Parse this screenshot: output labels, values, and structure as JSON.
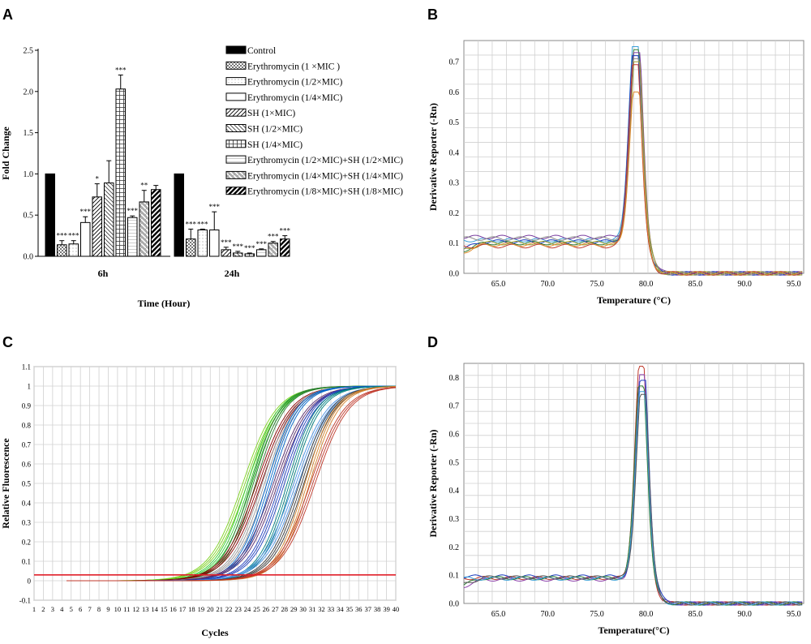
{
  "panels": {
    "a": "A",
    "b": "B",
    "c": "C",
    "d": "D"
  },
  "chart_data": [
    {
      "panel": "A",
      "type": "bar",
      "ylabel": "Fold Change",
      "xlabel": "Time (Hour)",
      "ylim": [
        0,
        2.5
      ],
      "yticks": [
        "0.0",
        "0.5",
        "1.0",
        "1.5",
        "2.0",
        "2.5"
      ],
      "categories": [
        "6h",
        "24h"
      ],
      "series": [
        {
          "name": "Control",
          "values": [
            1.0,
            1.0
          ],
          "err": [
            0,
            0
          ],
          "sig": [
            "",
            ""
          ]
        },
        {
          "name": "Erythromycin (1 ×MIC )",
          "values": [
            0.14,
            0.21
          ],
          "err": [
            0.05,
            0.12
          ],
          "sig": [
            "***",
            "***"
          ]
        },
        {
          "name": "Erythromycin (1/2×MIC)",
          "values": [
            0.15,
            0.32
          ],
          "err": [
            0.04,
            0.01
          ],
          "sig": [
            "***",
            "***"
          ]
        },
        {
          "name": "Erythromycin (1/4×MIC)",
          "values": [
            0.41,
            0.32
          ],
          "err": [
            0.07,
            0.22
          ],
          "sig": [
            "***",
            "***"
          ]
        },
        {
          "name": "SH (1×MIC)",
          "values": [
            0.72,
            0.08
          ],
          "err": [
            0.16,
            0.03
          ],
          "sig": [
            "*",
            "***"
          ]
        },
        {
          "name": "SH (1/2×MIC)",
          "values": [
            0.89,
            0.04
          ],
          "err": [
            0.27,
            0.02
          ],
          "sig": [
            "",
            "***"
          ]
        },
        {
          "name": "SH (1/4×MIC)",
          "values": [
            2.03,
            0.03
          ],
          "err": [
            0.17,
            0.01
          ],
          "sig": [
            "***",
            "***"
          ]
        },
        {
          "name": "Erythromycin (1/2×MIC)+SH (1/2×MIC)",
          "values": [
            0.47,
            0.08
          ],
          "err": [
            0.02,
            0.01
          ],
          "sig": [
            "***",
            "***"
          ]
        },
        {
          "name": "Erythromycin (1/4×MIC)+SH (1/4×MIC)",
          "values": [
            0.66,
            0.16
          ],
          "err": [
            0.14,
            0.02
          ],
          "sig": [
            "**",
            "***"
          ]
        },
        {
          "name": "Erythromycin (1/8×MIC)+SH (1/8×MIC)",
          "values": [
            0.81,
            0.21
          ],
          "err": [
            0.05,
            0.04
          ],
          "sig": [
            "",
            "***"
          ]
        }
      ]
    },
    {
      "panel": "B",
      "type": "line",
      "ylabel": "Derivative Reporter (-Rn)",
      "xlabel": "Temperature (°C)",
      "xlim": [
        61.5,
        96
      ],
      "ylim": [
        0,
        0.77
      ],
      "xticks": [
        "65.0",
        "70.0",
        "75.0",
        "80.0",
        "85.0",
        "90.0",
        "95.0"
      ],
      "yticks": [
        "0.0",
        "0.1",
        "0.2",
        "0.3",
        "0.4",
        "0.5",
        "0.6",
        "0.7"
      ],
      "peak_x": 79.0,
      "peaks": [
        0.75,
        0.74,
        0.73,
        0.72,
        0.71,
        0.7,
        0.69,
        0.6
      ],
      "colors": [
        "#3aa0d8",
        "#2e7d32",
        "#7b3fa0",
        "#1f3fbf",
        "#888888",
        "#9e9e2e",
        "#c0392b",
        "#e08a2c"
      ]
    },
    {
      "panel": "C",
      "type": "line",
      "ylabel": "Relative Fluorescence",
      "xlabel": "Cycles",
      "xlim": [
        1,
        40
      ],
      "ylim": [
        -0.1,
        1.1
      ],
      "xticks": [
        "1",
        "2",
        "3",
        "4",
        "5",
        "6",
        "7",
        "8",
        "9",
        "10",
        "11",
        "12",
        "13",
        "14",
        "15",
        "16",
        "17",
        "18",
        "19",
        "20",
        "21",
        "22",
        "23",
        "24",
        "25",
        "26",
        "27",
        "28",
        "29",
        "30",
        "31",
        "32",
        "33",
        "34",
        "35",
        "36",
        "37",
        "38",
        "39",
        "40"
      ],
      "yticks": [
        "-0.1",
        "0",
        "0.1",
        "0.2",
        "0.3",
        "0.4",
        "0.5",
        "0.6",
        "0.7",
        "0.8",
        "0.9",
        "1",
        "1.1"
      ],
      "threshold": 0.03,
      "midpoints": [
        23.5,
        24.0,
        24.4,
        25.0,
        25.6,
        26.1,
        26.8,
        27.5,
        28.3,
        29.0,
        29.6,
        30.2,
        30.8
      ],
      "colors": [
        "#7ed321",
        "#33cc33",
        "#2e7d32",
        "#8b0000",
        "#999999",
        "#0066cc",
        "#5b2c6f",
        "#1f3fbf",
        "#008080",
        "#4a90e2",
        "#3b3b3b",
        "#d4832c",
        "#c0392b"
      ]
    },
    {
      "panel": "D",
      "type": "line",
      "ylabel": "Derivative Reporter (-Rn)",
      "xlabel": "Temperature(°C)",
      "xlim": [
        61.5,
        96
      ],
      "ylim": [
        0,
        0.85
      ],
      "xticks": [
        "65.0",
        "70.0",
        "75.0",
        "80.0",
        "85.0",
        "90.0",
        "95.0"
      ],
      "yticks": [
        "0.0",
        "0.1",
        "0.2",
        "0.3",
        "0.4",
        "0.5",
        "0.6",
        "0.7",
        "0.8"
      ],
      "peak_x": 79.6,
      "peaks": [
        0.84,
        0.81,
        0.79,
        0.77,
        0.75,
        0.74
      ],
      "colors": [
        "#c0392b",
        "#8e44ad",
        "#1f3fbf",
        "#2e7d32",
        "#3aa0d8",
        "#555555"
      ]
    }
  ]
}
